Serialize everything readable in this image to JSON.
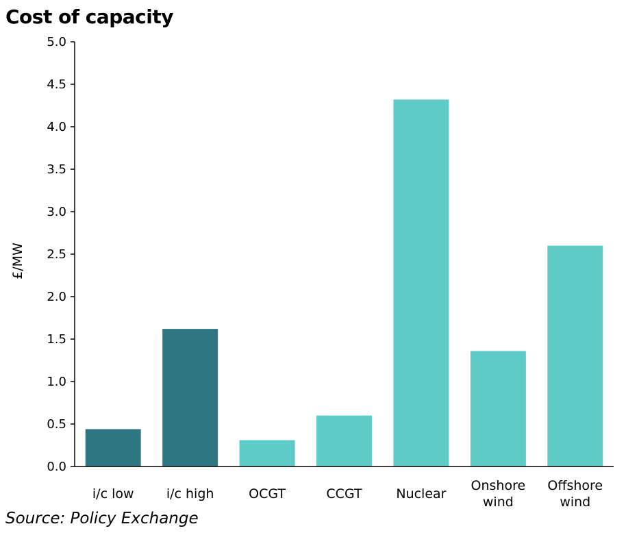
{
  "chart_data": {
    "type": "bar",
    "title": "Cost of capacity",
    "xlabel": "",
    "ylabel": "£/MW",
    "ylim": [
      0,
      5.0
    ],
    "yticks": [
      "0.0",
      "0.5",
      "1.0",
      "1.5",
      "2.0",
      "2.5",
      "3.0",
      "3.5",
      "4.0",
      "4.5",
      "5.0"
    ],
    "categories": [
      [
        "i/c low"
      ],
      [
        "i/c high"
      ],
      [
        "OCGT"
      ],
      [
        "CCGT"
      ],
      [
        "Nuclear"
      ],
      [
        "Onshore",
        "wind"
      ],
      [
        "Offshore",
        "wind"
      ]
    ],
    "values": [
      0.44,
      1.62,
      0.31,
      0.6,
      4.32,
      1.36,
      2.6
    ],
    "colors": [
      "#2e7782",
      "#2e7782",
      "#5ecbc8",
      "#5ecbc8",
      "#5ecbc8",
      "#5ecbc8",
      "#5ecbc8"
    ],
    "grid": false,
    "legend": "none"
  },
  "source": "Source: Policy Exchange"
}
